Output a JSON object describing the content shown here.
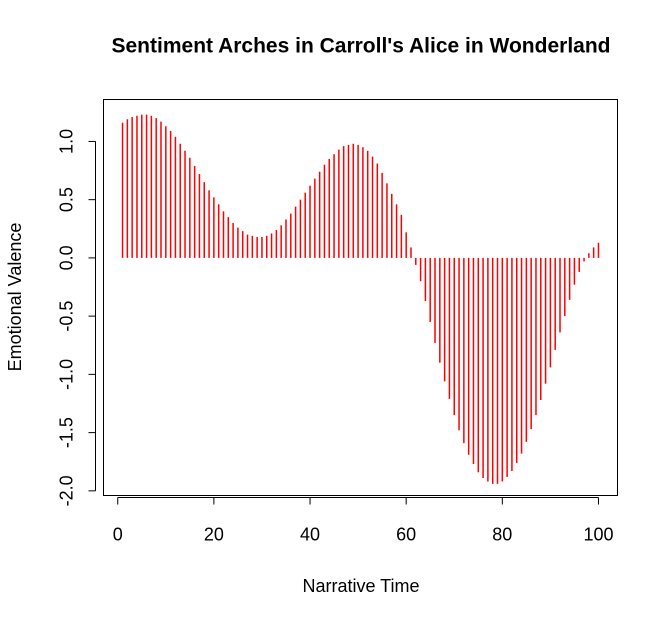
{
  "chart_data": {
    "type": "spike",
    "title": "Sentiment Arches in Carroll's Alice in Wonderland",
    "xlabel": "Narrative Time",
    "ylabel": "Emotional Valence",
    "color": "#ff0000",
    "x": [
      1,
      2,
      3,
      4,
      5,
      6,
      7,
      8,
      9,
      10,
      11,
      12,
      13,
      14,
      15,
      16,
      17,
      18,
      19,
      20,
      21,
      22,
      23,
      24,
      25,
      26,
      27,
      28,
      29,
      30,
      31,
      32,
      33,
      34,
      35,
      36,
      37,
      38,
      39,
      40,
      41,
      42,
      43,
      44,
      45,
      46,
      47,
      48,
      49,
      50,
      51,
      52,
      53,
      54,
      55,
      56,
      57,
      58,
      59,
      60,
      61,
      62,
      63,
      64,
      65,
      66,
      67,
      68,
      69,
      70,
      71,
      72,
      73,
      74,
      75,
      76,
      77,
      78,
      79,
      80,
      81,
      82,
      83,
      84,
      85,
      86,
      87,
      88,
      89,
      90,
      91,
      92,
      93,
      94,
      95,
      96,
      97,
      98,
      99,
      100
    ],
    "values": [
      1.16,
      1.19,
      1.21,
      1.22,
      1.23,
      1.23,
      1.22,
      1.2,
      1.17,
      1.13,
      1.09,
      1.04,
      0.98,
      0.92,
      0.86,
      0.79,
      0.72,
      0.65,
      0.58,
      0.52,
      0.46,
      0.4,
      0.35,
      0.3,
      0.26,
      0.23,
      0.2,
      0.19,
      0.18,
      0.18,
      0.19,
      0.21,
      0.24,
      0.28,
      0.33,
      0.38,
      0.44,
      0.5,
      0.56,
      0.62,
      0.68,
      0.74,
      0.8,
      0.85,
      0.89,
      0.93,
      0.96,
      0.97,
      0.98,
      0.97,
      0.95,
      0.92,
      0.87,
      0.81,
      0.73,
      0.64,
      0.55,
      0.46,
      0.37,
      0.22,
      0.09,
      -0.06,
      -0.2,
      -0.37,
      -0.55,
      -0.73,
      -0.9,
      -1.06,
      -1.21,
      -1.35,
      -1.48,
      -1.59,
      -1.69,
      -1.77,
      -1.84,
      -1.89,
      -1.92,
      -1.94,
      -1.94,
      -1.92,
      -1.88,
      -1.83,
      -1.76,
      -1.68,
      -1.58,
      -1.47,
      -1.35,
      -1.22,
      -1.08,
      -0.94,
      -0.79,
      -0.64,
      -0.5,
      -0.36,
      -0.23,
      -0.12,
      -0.03,
      0.04,
      0.09,
      0.13
    ],
    "xlim": [
      -2.96,
      103.96
    ],
    "xticks": [
      0,
      20,
      40,
      60,
      80,
      100
    ],
    "ylim": [
      -2.04,
      1.36
    ],
    "yticks": [
      {
        "value": -2,
        "label": "-2.0"
      },
      -1.5,
      {
        "value": -1,
        "label": "-1.0"
      },
      -0.5,
      {
        "value": 0,
        "label": "0.0"
      },
      0.5,
      {
        "value": 1,
        "label": "1.0"
      }
    ]
  }
}
